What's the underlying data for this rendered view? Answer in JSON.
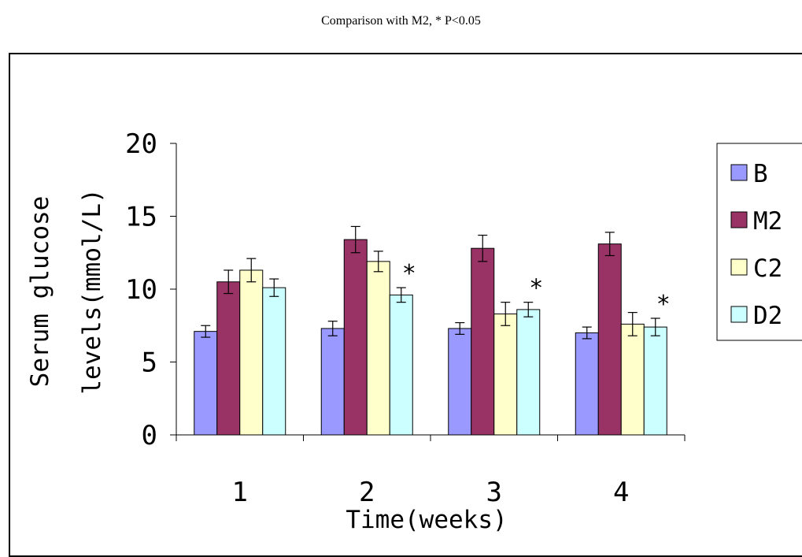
{
  "caption": "Comparison with M2, * P<0.05",
  "chart_data": {
    "type": "bar",
    "xlabel": "Time(weeks)",
    "ylabel_lines": [
      "Serum glucose",
      "levels(mmol/L)"
    ],
    "ylim": [
      0,
      20
    ],
    "yticks": [
      0,
      5,
      10,
      15,
      20
    ],
    "categories": [
      "1",
      "2",
      "3",
      "4"
    ],
    "legend_position": "right",
    "series": [
      {
        "name": "B",
        "color": "#9999ff",
        "values": [
          7.1,
          7.3,
          7.3,
          7.0
        ],
        "errors": [
          0.4,
          0.5,
          0.4,
          0.4
        ]
      },
      {
        "name": "M2",
        "color": "#993366",
        "values": [
          10.5,
          13.4,
          12.8,
          13.1
        ],
        "errors": [
          0.8,
          0.9,
          0.9,
          0.8
        ]
      },
      {
        "name": "C2",
        "color": "#ffffcc",
        "values": [
          11.3,
          11.9,
          8.3,
          7.6
        ],
        "errors": [
          0.8,
          0.7,
          0.8,
          0.8
        ]
      },
      {
        "name": "D2",
        "color": "#ccffff",
        "values": [
          10.1,
          9.6,
          8.6,
          7.4
        ],
        "errors": [
          0.6,
          0.5,
          0.5,
          0.6
        ]
      }
    ],
    "annotations": [
      {
        "text": "*",
        "category": "2",
        "series": "D2"
      },
      {
        "text": "*",
        "category": "3",
        "series": "D2"
      },
      {
        "text": "*",
        "category": "4",
        "series": "D2"
      }
    ]
  }
}
